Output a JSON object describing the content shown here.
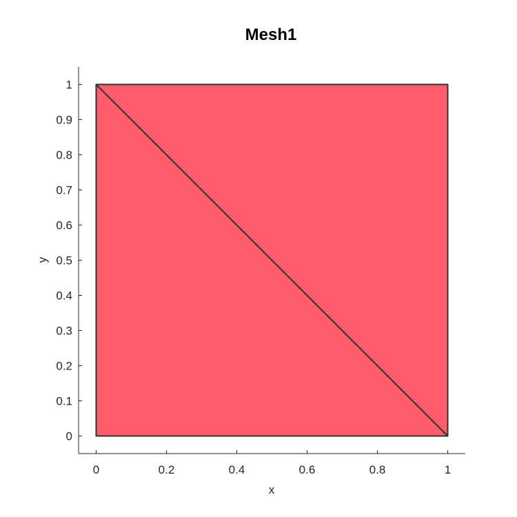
{
  "chart_data": {
    "type": "mesh",
    "title": "Mesh1",
    "xlabel": "x",
    "ylabel": "y",
    "xlim": [
      -0.05,
      1.05
    ],
    "ylim": [
      -0.05,
      1.05
    ],
    "xticks": [
      0,
      0.2,
      0.4,
      0.6,
      0.8,
      1
    ],
    "xtick_labels": [
      "0",
      "0.2",
      "0.4",
      "0.6",
      "0.8",
      "1"
    ],
    "yticks": [
      0,
      0.1,
      0.2,
      0.3,
      0.4,
      0.5,
      0.6,
      0.7,
      0.8,
      0.9,
      1
    ],
    "ytick_labels": [
      "0",
      "0.1",
      "0.2",
      "0.3",
      "0.4",
      "0.5",
      "0.6",
      "0.7",
      "0.8",
      "0.9",
      "1"
    ],
    "grid": false,
    "face_color": "#ff5d6b",
    "edge_color": "#333333",
    "vertices": [
      [
        0,
        0
      ],
      [
        1,
        0
      ],
      [
        1,
        1
      ],
      [
        0,
        1
      ]
    ],
    "triangles": [
      [
        0,
        1,
        3
      ],
      [
        1,
        2,
        3
      ]
    ]
  }
}
